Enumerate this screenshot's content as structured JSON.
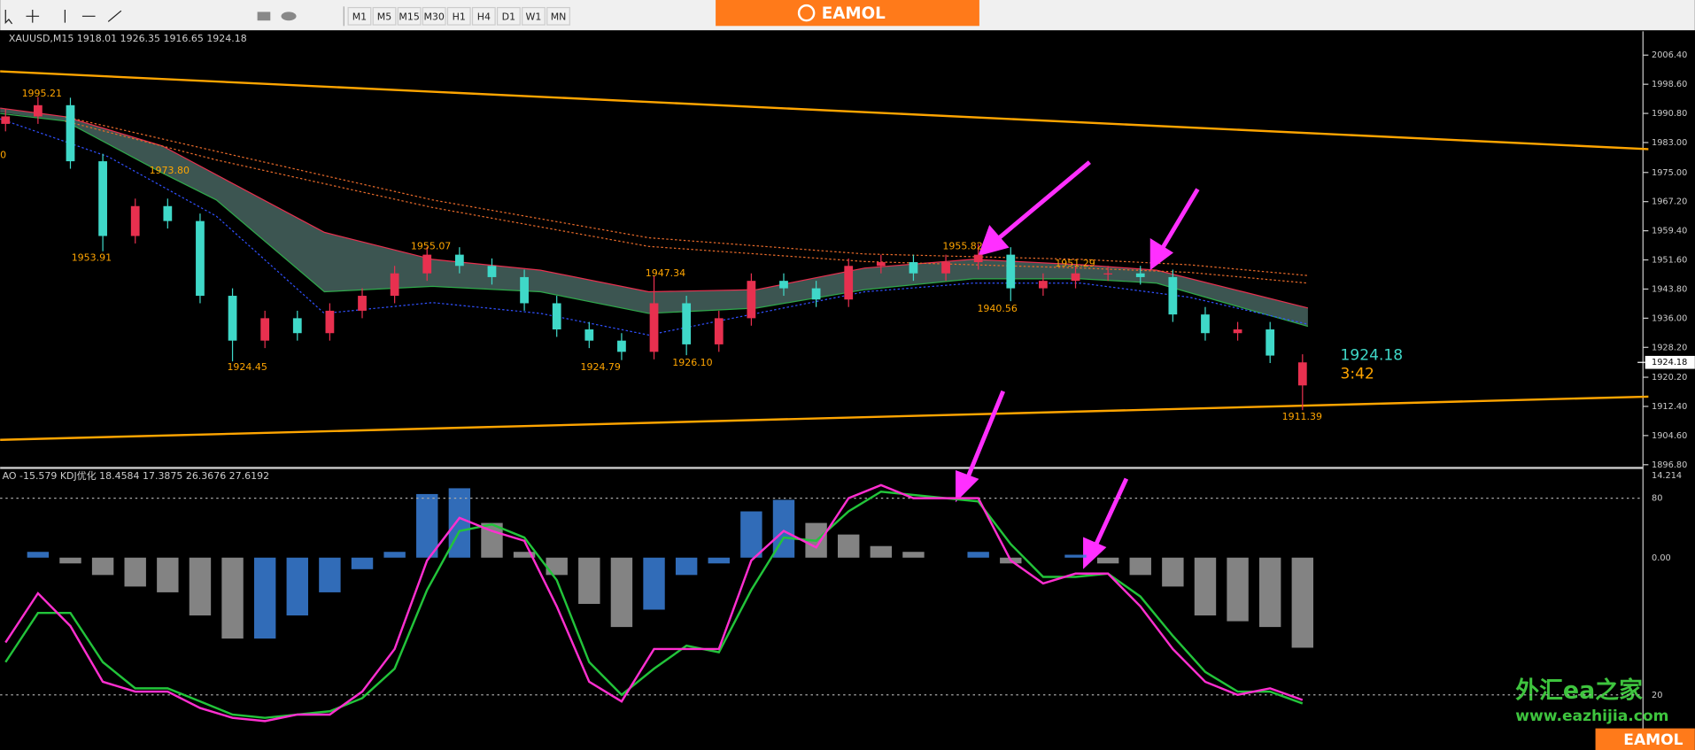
{
  "toolbar": {
    "timeframes": [
      "M1",
      "M5",
      "M15",
      "M30",
      "H1",
      "H4",
      "D1",
      "W1",
      "MN"
    ]
  },
  "logo": "EAMOL",
  "chart_data": {
    "type": "candlestick",
    "header": "XAUUSD,M15  1918.01 1926.35 1916.65 1924.18",
    "open": [
      1988,
      1990,
      1993,
      1978,
      1958,
      1966,
      1962,
      1942,
      1930,
      1936,
      1932,
      1938,
      1942,
      1948,
      1953,
      1950,
      1947,
      1940,
      1933,
      1930,
      1927,
      1940,
      1929,
      1936,
      1946,
      1944,
      1941,
      1950,
      1951,
      1948,
      1951,
      1953,
      1944,
      1946,
      1948,
      1948,
      1947,
      1937,
      1932,
      1933,
      1918.01
    ],
    "high": [
      1992,
      1995.21,
      1995,
      1980,
      1968,
      1968,
      1964,
      1944,
      1938,
      1938,
      1940,
      1944,
      1950,
      1955.07,
      1955,
      1952,
      1949,
      1942,
      1935,
      1932,
      1947.34,
      1942,
      1938,
      1948,
      1948,
      1946,
      1952,
      1953,
      1953,
      1953,
      1955.82,
      1955,
      1948,
      1950,
      1950,
      1950,
      1949,
      1939,
      1935,
      1935,
      1926.35
    ],
    "low": [
      1986,
      1988,
      1976,
      1953.91,
      1956,
      1960,
      1940,
      1924.45,
      1928,
      1930,
      1930,
      1936,
      1940,
      1946,
      1948,
      1945,
      1938,
      1931,
      1928,
      1924.79,
      1925,
      1926.1,
      1927,
      1934,
      1942,
      1939,
      1939,
      1948,
      1946,
      1946,
      1949,
      1940.56,
      1942,
      1944,
      1946,
      1945,
      1935,
      1930,
      1930,
      1924,
      1911.39
    ],
    "close": [
      1990,
      1993,
      1978,
      1958,
      1966,
      1962,
      1942,
      1930,
      1936,
      1932,
      1938,
      1942,
      1948,
      1953,
      1950,
      1947,
      1940,
      1933,
      1930,
      1927,
      1940,
      1929,
      1936,
      1946,
      1944,
      1941,
      1950,
      1951,
      1948,
      1951,
      1953,
      1944,
      1946,
      1948,
      1948,
      1947,
      1937,
      1932,
      1933,
      1926,
      1924.18
    ],
    "up_color": "#e8304f",
    "down_color": "#3fd8c8",
    "ylim": [
      1896.8,
      2006.4
    ],
    "yticks": [
      {
        "value": 2006.4,
        "label": "2006.40"
      },
      {
        "value": 1998.6,
        "label": "1998.60"
      },
      {
        "value": 1990.8,
        "label": "1990.80"
      },
      {
        "value": 1983,
        "label": "1983.00"
      },
      {
        "value": 1975,
        "label": "1975.00"
      },
      {
        "value": 1967.2,
        "label": "1967.20"
      },
      {
        "value": 1959.4,
        "label": "1959.40"
      },
      {
        "value": 1951.6,
        "label": "1951.60"
      },
      {
        "value": 1943.8,
        "label": "1943.80"
      },
      {
        "value": 1936,
        "label": "1936.00"
      },
      {
        "value": 1928.2,
        "label": "1928.20"
      },
      {
        "value": 1920.2,
        "label": "1920.20"
      },
      {
        "value": 1912.4,
        "label": "1912.40"
      },
      {
        "value": 1904.6,
        "label": "1904.60"
      },
      {
        "value": 1896.8,
        "label": "1896.80"
      }
    ],
    "current_price": {
      "value": 1924.18,
      "label": "1924.18"
    },
    "countdown": "3:42",
    "price_labels": [
      "1995.21",
      "1973.80",
      "1953.91",
      "1955.07",
      "1947.34",
      "1924.45",
      "1924.79",
      "1926.10",
      "1955.82",
      "1940.56",
      "1951.29",
      "1911.39",
      "0"
    ]
  },
  "indicator": {
    "header": "AO -15.579  KDJ优化 18.4584 17.3875 26.3676 27.6192",
    "ao_values": [
      0,
      1,
      -1,
      -3,
      -5,
      -6,
      -10,
      -14,
      -14,
      -10,
      -6,
      -2,
      1,
      11,
      12,
      6,
      1,
      -3,
      -8,
      -12,
      -9,
      -3,
      -1,
      8,
      10,
      6,
      4,
      2,
      1,
      0,
      1,
      -1,
      0,
      0.5,
      -1,
      -3,
      -5,
      -10,
      -11,
      -12,
      -15.579
    ],
    "ao_top_label": "14.214",
    "ao_zero_label": "0.00",
    "k_values": [
      36,
      51,
      41,
      24,
      21,
      21,
      16,
      13,
      12,
      14,
      14,
      21,
      34,
      61,
      74,
      70,
      67,
      47,
      24,
      18,
      34,
      34,
      34,
      61,
      70,
      65,
      80,
      84,
      80,
      80,
      80,
      61,
      54,
      57,
      57,
      47,
      34,
      24,
      20,
      22,
      18.4584
    ],
    "d_values": [
      30,
      45,
      45,
      30,
      22,
      22,
      18,
      14,
      13,
      14,
      15,
      19,
      28,
      52,
      70,
      72,
      68,
      55,
      30,
      20,
      28,
      35,
      33,
      52,
      68,
      67,
      76,
      82,
      81,
      80,
      79,
      66,
      56,
      56,
      57,
      50,
      38,
      27,
      21,
      21,
      17.3875
    ],
    "k_color": "#ff2fd0",
    "d_color": "#22c43a",
    "kd_yticks": [
      80,
      20
    ]
  },
  "watermark": {
    "title": "外汇ea之家",
    "url": "www.eazhijia.com",
    "brand": "EAMOL"
  }
}
